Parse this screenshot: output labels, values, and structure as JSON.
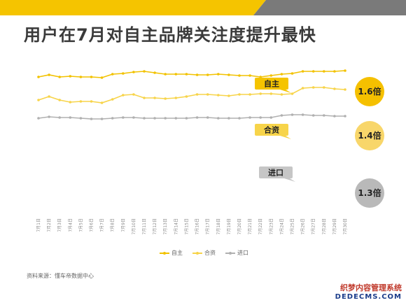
{
  "title": "用户在7月对自主品牌关注度提升最快",
  "source": "资料来源：懂车帝数据中心",
  "watermark": {
    "line1": "织梦内容管理系统",
    "line2": "DEDECMS.COM"
  },
  "colors": {
    "band_yellow": "#f5c400",
    "band_gray": "#7a7a7a",
    "zizhu": "#f2c200",
    "hezi": "#f7d44a",
    "jinkou": "#b0b0b0",
    "end_zizhu": "#f5c000",
    "end_hezi": "#f8d66a",
    "end_jinkou": "#b9b9b9"
  },
  "chart_data": {
    "type": "line",
    "x": [
      "7月1日",
      "7月2日",
      "7月3日",
      "7月4日",
      "7月5日",
      "7月6日",
      "7月7日",
      "7月8日",
      "7月9日",
      "7月10日",
      "7月11日",
      "7月12日",
      "7月13日",
      "7月14日",
      "7月15日",
      "7月16日",
      "7月17日",
      "7月18日",
      "7月19日",
      "7月20日",
      "7月21日",
      "7月22日",
      "7月23日",
      "7月24日",
      "7月25日",
      "7月26日",
      "7月27日",
      "7月28日",
      "7月29日",
      "7月30日"
    ],
    "series": [
      {
        "name": "自主",
        "label": "自主",
        "end_label": "1.6倍",
        "values": [
          110,
          107,
          110,
          109,
          110,
          110,
          111,
          106,
          105,
          103,
          102,
          104,
          106,
          106,
          106,
          107,
          107,
          106,
          107,
          108,
          108,
          110,
          108,
          106,
          105,
          102,
          102,
          102,
          102,
          101
        ]
      },
      {
        "name": "合资",
        "label": "合资",
        "end_label": "1.4倍",
        "values": [
          143,
          138,
          143,
          146,
          145,
          145,
          147,
          142,
          136,
          135,
          140,
          140,
          141,
          140,
          138,
          135,
          135,
          136,
          137,
          135,
          135,
          134,
          134,
          135,
          134,
          126,
          125,
          125,
          127,
          128
        ]
      },
      {
        "name": "进口",
        "label": "进口",
        "end_label": "1.3倍",
        "values": [
          169,
          167,
          168,
          168,
          169,
          170,
          170,
          169,
          168,
          168,
          169,
          169,
          169,
          169,
          169,
          168,
          168,
          169,
          169,
          169,
          168,
          168,
          168,
          165,
          164,
          164,
          165,
          165,
          166,
          166
        ]
      }
    ],
    "legend": [
      "自主",
      "合资",
      "进口"
    ],
    "grid": false,
    "legend_position": "bottom"
  }
}
